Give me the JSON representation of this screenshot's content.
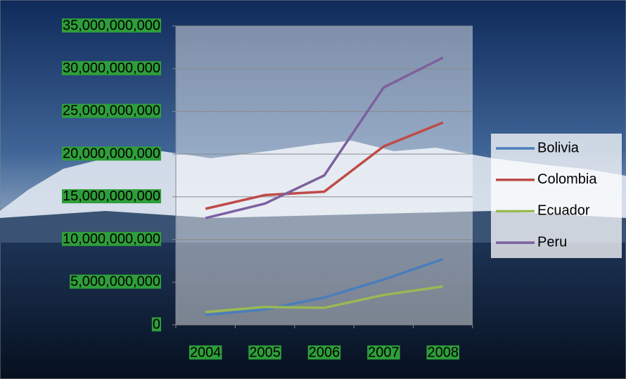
{
  "chart_data": {
    "type": "line",
    "categories": [
      "2004",
      "2005",
      "2006",
      "2007",
      "2008"
    ],
    "series": [
      {
        "name": "Bolivia",
        "color": "#4a7ebb",
        "values": [
          1150000000,
          1800000000,
          3200000000,
          5300000000,
          7700000000
        ]
      },
      {
        "name": "Colombia",
        "color": "#be4b48",
        "values": [
          13600000000,
          15200000000,
          15600000000,
          20900000000,
          23700000000
        ]
      },
      {
        "name": "Ecuador",
        "color": "#98b954",
        "values": [
          1500000000,
          2100000000,
          2000000000,
          3500000000,
          4500000000
        ]
      },
      {
        "name": "Peru",
        "color": "#7d60a0",
        "values": [
          12500000000,
          14200000000,
          17500000000,
          27800000000,
          31300000000
        ]
      }
    ],
    "ylim": [
      0,
      35000000000
    ],
    "yticks": [
      0,
      {
        "value": 5000000000,
        "label": "5,000,000,000"
      },
      {
        "value": 10000000000,
        "label": "10,000,000,000"
      },
      {
        "value": 15000000000,
        "label": "15,000,000,000"
      },
      {
        "value": 20000000000,
        "label": "20,000,000,000"
      },
      {
        "value": 25000000000,
        "label": "25,000,000,000"
      },
      {
        "value": 30000000000,
        "label": "30,000,000,000"
      },
      {
        "value": 35000000000,
        "label": "35,000,000,000"
      }
    ],
    "grid": true
  }
}
